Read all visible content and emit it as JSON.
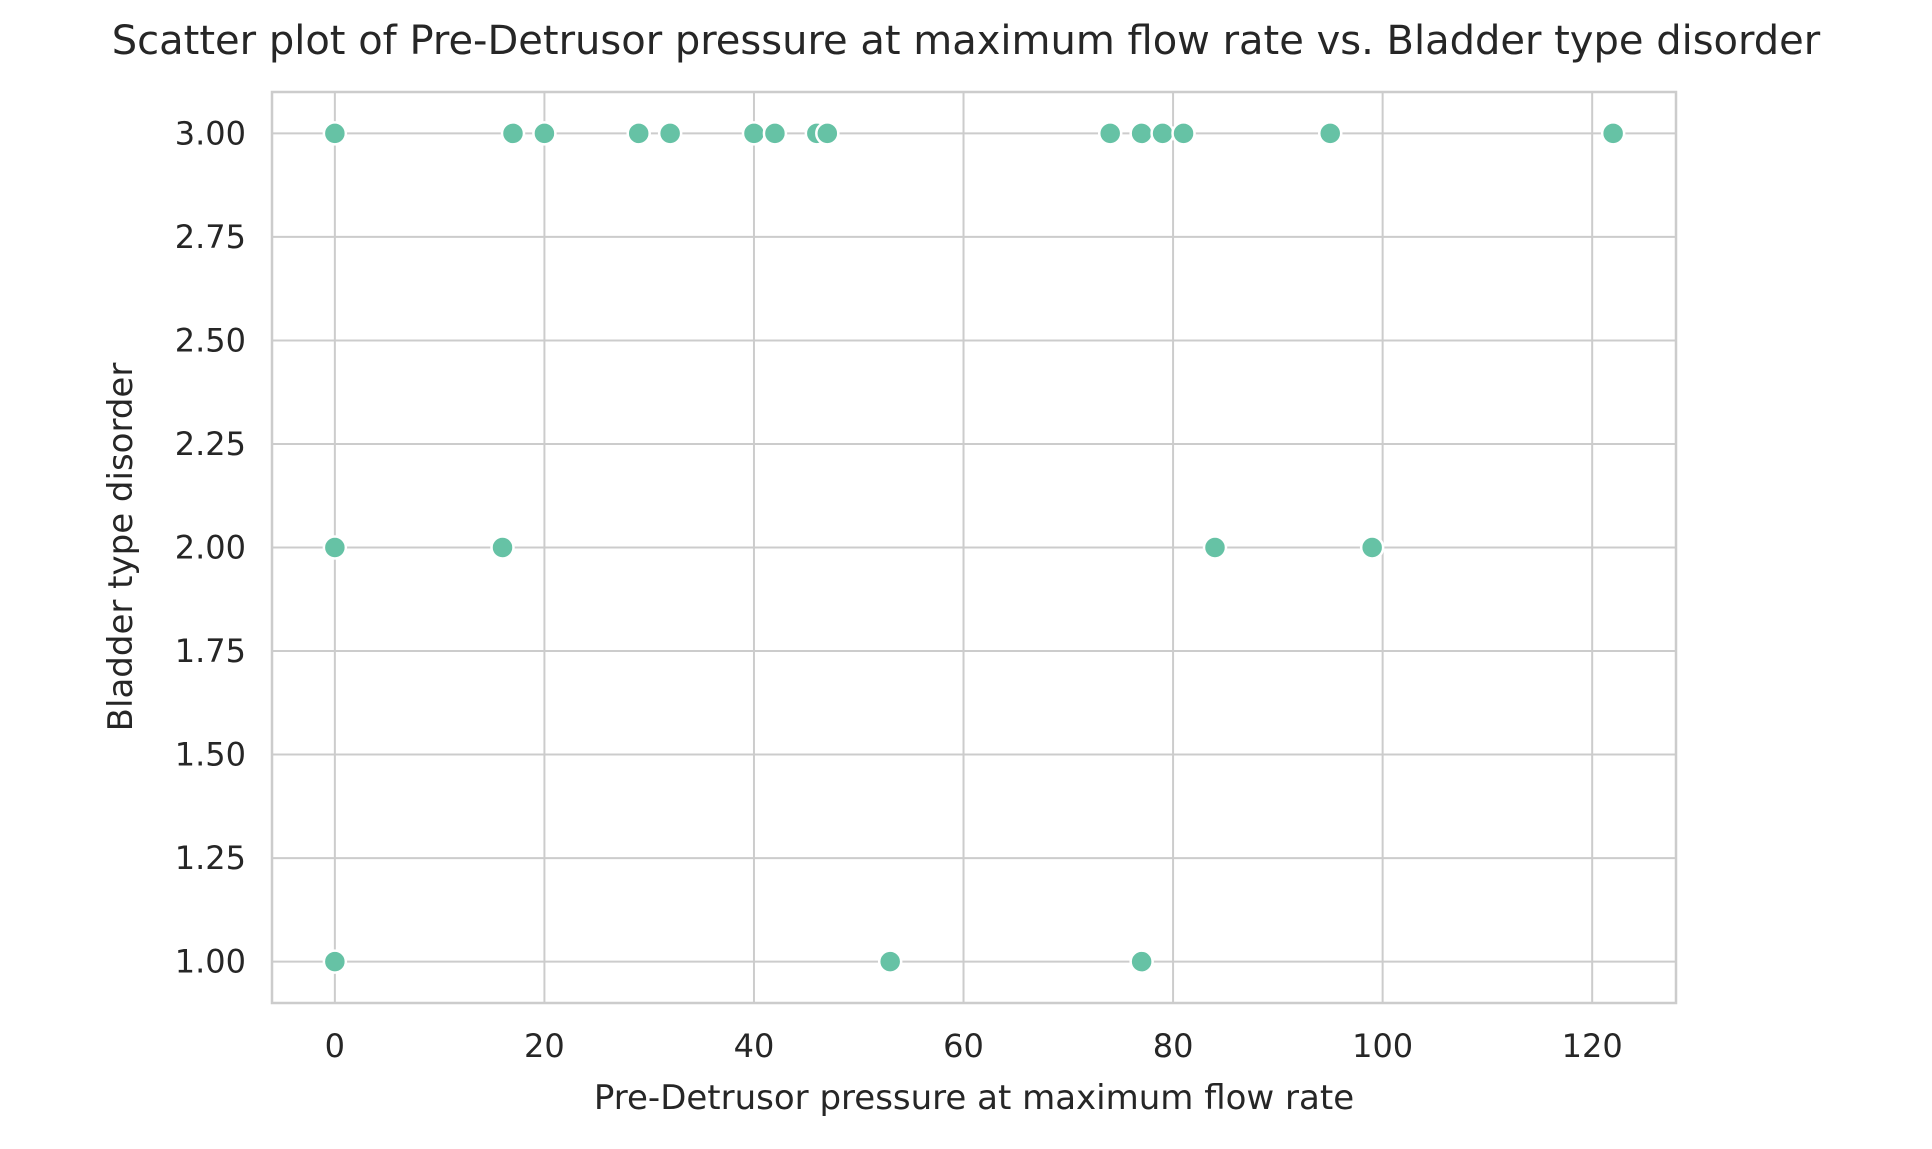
{
  "chart_data": {
    "type": "scatter",
    "title": "Scatter plot of Pre-Detrusor pressure at maximum flow rate vs. Bladder type disorder",
    "xlabel": "Pre-Detrusor pressure at maximum flow rate",
    "ylabel": "Bladder type disorder",
    "xlim": [
      -6,
      128
    ],
    "ylim": [
      0.9,
      3.1
    ],
    "xticks": [
      0,
      20,
      40,
      60,
      80,
      100,
      120
    ],
    "xtick_labels": [
      "0",
      "20",
      "40",
      "60",
      "80",
      "100",
      "120"
    ],
    "yticks": [
      1.0,
      1.25,
      1.5,
      1.75,
      2.0,
      2.25,
      2.5,
      2.75,
      3.0
    ],
    "ytick_labels": [
      "1.00",
      "1.25",
      "1.50",
      "1.75",
      "2.00",
      "2.25",
      "2.50",
      "2.75",
      "3.00"
    ],
    "grid": true,
    "marker_color": "#66c2a5",
    "points": [
      {
        "x": 0,
        "y": 3
      },
      {
        "x": 17,
        "y": 3
      },
      {
        "x": 20,
        "y": 3
      },
      {
        "x": 29,
        "y": 3
      },
      {
        "x": 32,
        "y": 3
      },
      {
        "x": 40,
        "y": 3
      },
      {
        "x": 42,
        "y": 3
      },
      {
        "x": 46,
        "y": 3
      },
      {
        "x": 47,
        "y": 3
      },
      {
        "x": 74,
        "y": 3
      },
      {
        "x": 77,
        "y": 3
      },
      {
        "x": 79,
        "y": 3
      },
      {
        "x": 81,
        "y": 3
      },
      {
        "x": 95,
        "y": 3
      },
      {
        "x": 122,
        "y": 3
      },
      {
        "x": 0,
        "y": 2
      },
      {
        "x": 16,
        "y": 2
      },
      {
        "x": 84,
        "y": 2
      },
      {
        "x": 99,
        "y": 2
      },
      {
        "x": 0,
        "y": 1
      },
      {
        "x": 53,
        "y": 1
      },
      {
        "x": 77,
        "y": 1
      }
    ]
  }
}
